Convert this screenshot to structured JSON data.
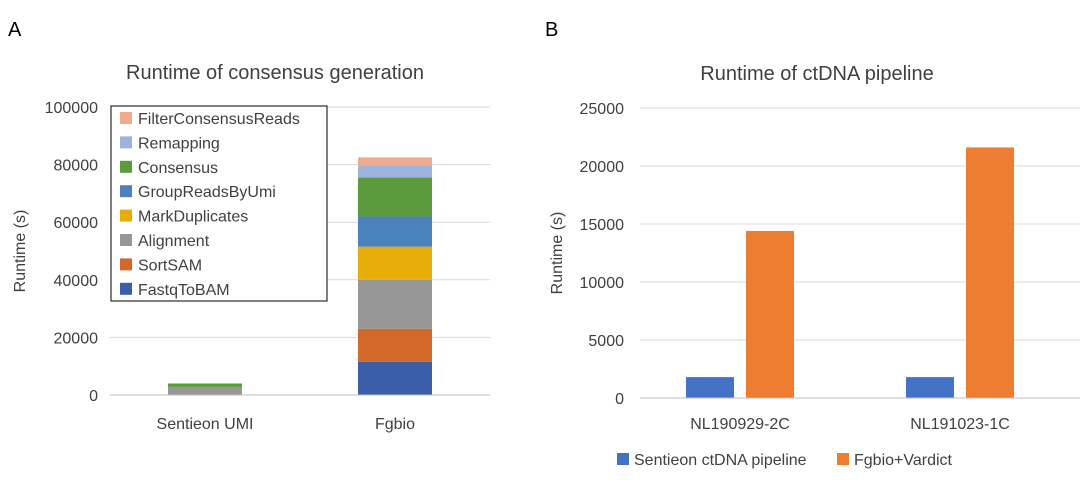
{
  "panels": {
    "a_letter": "A",
    "b_letter": "B"
  },
  "chart_data": [
    {
      "type": "bar",
      "stacked": true,
      "title": "Runtime of consensus generation",
      "xlabel": "",
      "ylabel": "Runtime (s)",
      "ylim": [
        0,
        100000
      ],
      "yticks": [
        0,
        20000,
        40000,
        60000,
        80000,
        100000
      ],
      "grid": true,
      "legend_position": "top-left",
      "categories": [
        "Sentieon UMI",
        "Fgbio"
      ],
      "series": [
        {
          "name": "FastqToBAM",
          "color": "#3A5FA8",
          "values": [
            0,
            11500
          ]
        },
        {
          "name": "SortSAM",
          "color": "#D2682A",
          "values": [
            0,
            11500
          ]
        },
        {
          "name": "Alignment",
          "color": "#979797",
          "values": [
            2800,
            17000
          ]
        },
        {
          "name": "MarkDuplicates",
          "color": "#E7AE0A",
          "values": [
            0,
            11500
          ]
        },
        {
          "name": "GroupReadsByUmi",
          "color": "#4A82BE",
          "values": [
            0,
            10500
          ]
        },
        {
          "name": "Consensus",
          "color": "#5C9A3E",
          "values": [
            1200,
            13500
          ]
        },
        {
          "name": "Remapping",
          "color": "#9DB2DC",
          "values": [
            0,
            4000
          ]
        },
        {
          "name": "FilterConsensusReads",
          "color": "#EFAB8D",
          "values": [
            0,
            3000
          ]
        }
      ]
    },
    {
      "type": "bar",
      "stacked": false,
      "title": "Runtime of ctDNA pipeline",
      "xlabel": "",
      "ylabel": "Runtime (s)",
      "ylim": [
        0,
        25000
      ],
      "yticks": [
        0,
        5000,
        10000,
        15000,
        20000,
        25000
      ],
      "grid": true,
      "legend_position": "bottom",
      "categories": [
        "NL190929-2C",
        "NL191023-1C"
      ],
      "series": [
        {
          "name": "Sentieon ctDNA pipeline",
          "color": "#4472C4",
          "values": [
            1800,
            1800
          ]
        },
        {
          "name": "Fgbio+Vardict",
          "color": "#ED7D31",
          "values": [
            14400,
            21600
          ]
        }
      ]
    }
  ]
}
